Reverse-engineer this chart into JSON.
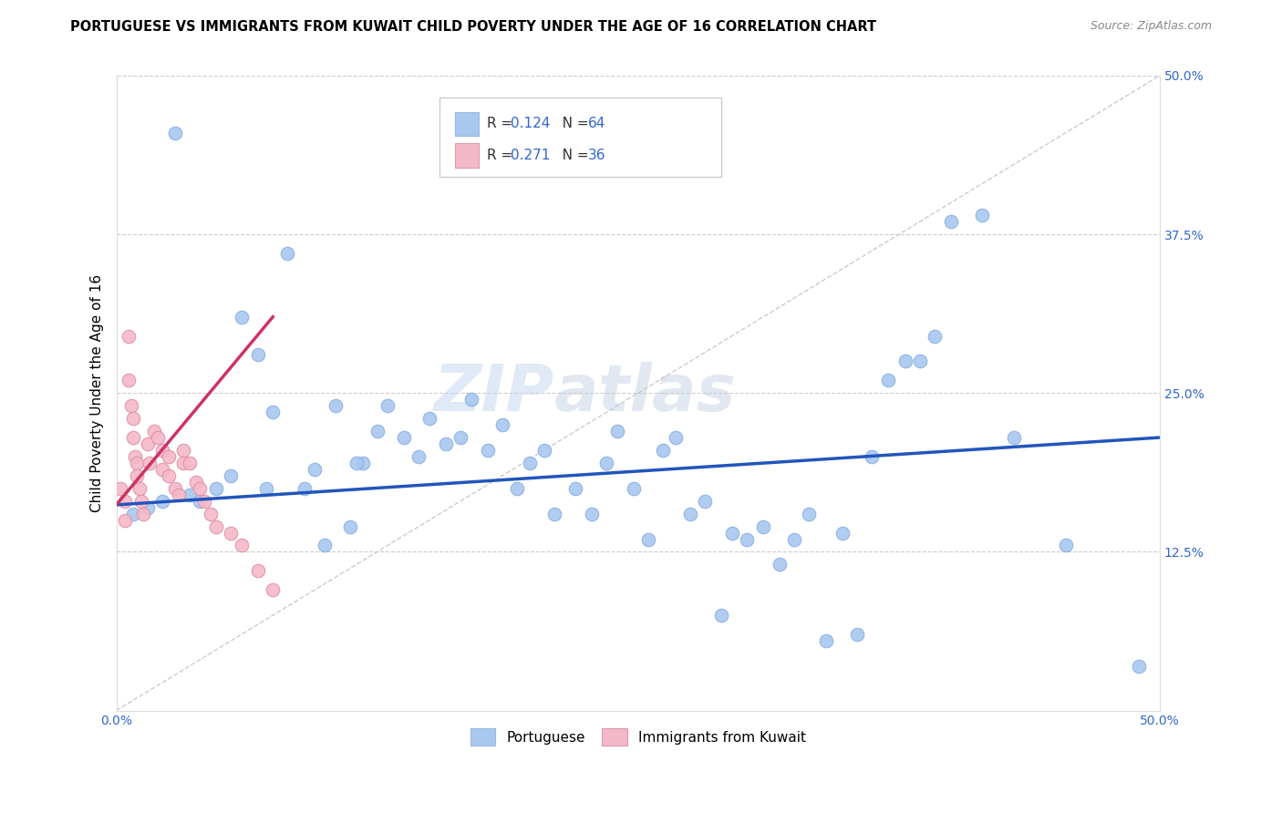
{
  "title": "PORTUGUESE VS IMMIGRANTS FROM KUWAIT CHILD POVERTY UNDER THE AGE OF 16 CORRELATION CHART",
  "source": "Source: ZipAtlas.com",
  "ylabel": "Child Poverty Under the Age of 16",
  "xlim": [
    0.0,
    0.5
  ],
  "ylim": [
    0.0,
    0.5
  ],
  "blue_color": "#a8c8f0",
  "pink_color": "#f4b8c8",
  "blue_line_color": "#2255bb",
  "pink_line_color": "#cc3366",
  "watermark_zip": "ZIP",
  "watermark_atlas": "atlas",
  "portuguese_x": [
    0.028,
    0.06,
    0.068,
    0.075,
    0.082,
    0.09,
    0.095,
    0.105,
    0.112,
    0.118,
    0.125,
    0.13,
    0.138,
    0.145,
    0.15,
    0.158,
    0.165,
    0.17,
    0.178,
    0.185,
    0.192,
    0.198,
    0.205,
    0.21,
    0.22,
    0.228,
    0.235,
    0.24,
    0.248,
    0.255,
    0.262,
    0.268,
    0.275,
    0.282,
    0.29,
    0.295,
    0.302,
    0.31,
    0.318,
    0.325,
    0.332,
    0.34,
    0.348,
    0.355,
    0.362,
    0.37,
    0.378,
    0.385,
    0.392,
    0.4,
    0.415,
    0.43,
    0.455,
    0.49,
    0.048,
    0.035,
    0.022,
    0.015,
    0.008,
    0.04,
    0.055,
    0.072,
    0.1,
    0.115
  ],
  "portuguese_y": [
    0.455,
    0.31,
    0.28,
    0.235,
    0.36,
    0.175,
    0.19,
    0.24,
    0.145,
    0.195,
    0.22,
    0.24,
    0.215,
    0.2,
    0.23,
    0.21,
    0.215,
    0.245,
    0.205,
    0.225,
    0.175,
    0.195,
    0.205,
    0.155,
    0.175,
    0.155,
    0.195,
    0.22,
    0.175,
    0.135,
    0.205,
    0.215,
    0.155,
    0.165,
    0.075,
    0.14,
    0.135,
    0.145,
    0.115,
    0.135,
    0.155,
    0.055,
    0.14,
    0.06,
    0.2,
    0.26,
    0.275,
    0.275,
    0.295,
    0.385,
    0.39,
    0.215,
    0.13,
    0.035,
    0.175,
    0.17,
    0.165,
    0.16,
    0.155,
    0.165,
    0.185,
    0.175,
    0.13,
    0.195
  ],
  "kuwait_x": [
    0.002,
    0.004,
    0.004,
    0.006,
    0.006,
    0.007,
    0.008,
    0.008,
    0.009,
    0.01,
    0.01,
    0.011,
    0.012,
    0.013,
    0.015,
    0.016,
    0.018,
    0.02,
    0.022,
    0.022,
    0.025,
    0.025,
    0.028,
    0.03,
    0.032,
    0.032,
    0.035,
    0.038,
    0.04,
    0.042,
    0.045,
    0.048,
    0.055,
    0.06,
    0.068,
    0.075
  ],
  "kuwait_y": [
    0.175,
    0.165,
    0.15,
    0.295,
    0.26,
    0.24,
    0.23,
    0.215,
    0.2,
    0.195,
    0.185,
    0.175,
    0.165,
    0.155,
    0.21,
    0.195,
    0.22,
    0.215,
    0.205,
    0.19,
    0.2,
    0.185,
    0.175,
    0.17,
    0.205,
    0.195,
    0.195,
    0.18,
    0.175,
    0.165,
    0.155,
    0.145,
    0.14,
    0.13,
    0.11,
    0.095
  ],
  "blue_trend_x": [
    0.0,
    0.5
  ],
  "blue_trend_y": [
    0.162,
    0.215
  ],
  "pink_trend_x": [
    0.0,
    0.075
  ],
  "pink_trend_y": [
    0.162,
    0.31
  ]
}
